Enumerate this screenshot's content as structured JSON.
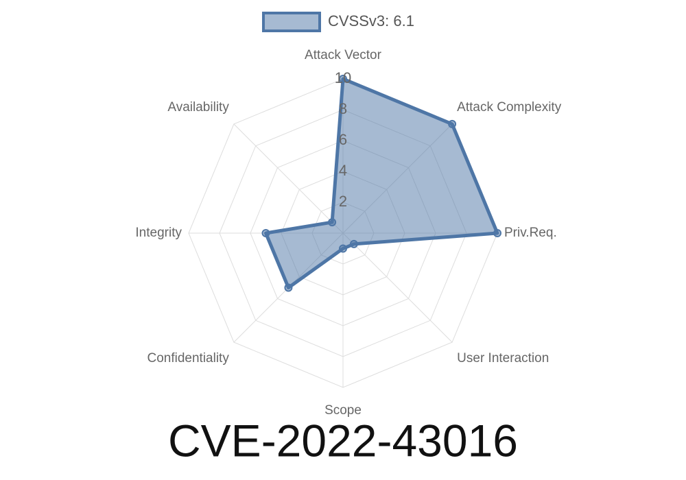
{
  "chart_data": {
    "type": "radar",
    "title": "CVE-2022-43016",
    "categories": [
      "Attack Vector",
      "Attack Complexity",
      "Priv.Req.",
      "User Interaction",
      "Scope",
      "Confidentiality",
      "Integrity",
      "Availability"
    ],
    "series": [
      {
        "name": "CVSSv3: 6.1",
        "color": "#4e76a6",
        "values": [
          10,
          10,
          10,
          1,
          1,
          5,
          5,
          1
        ]
      }
    ],
    "rlim": [
      0,
      10
    ],
    "rticks": [
      2,
      4,
      6,
      8,
      10
    ],
    "grid": true
  }
}
